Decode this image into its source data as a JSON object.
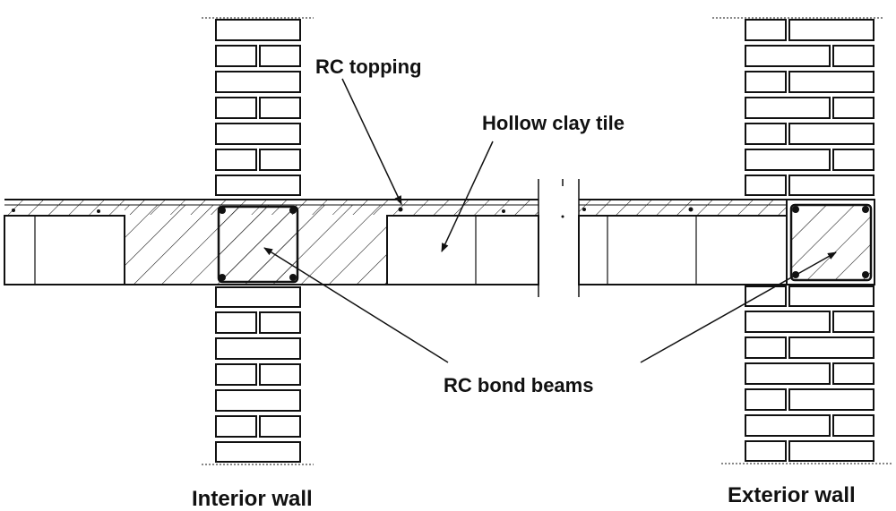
{
  "labels": {
    "rc_topping": "RC topping",
    "hollow_clay_tile": "Hollow clay tile",
    "rc_bond_beams": "RC bond beams",
    "interior_wall": "Interior wall",
    "exterior_wall": "Exterior wall"
  },
  "colors": {
    "line": "#111111",
    "background": "#ffffff"
  }
}
